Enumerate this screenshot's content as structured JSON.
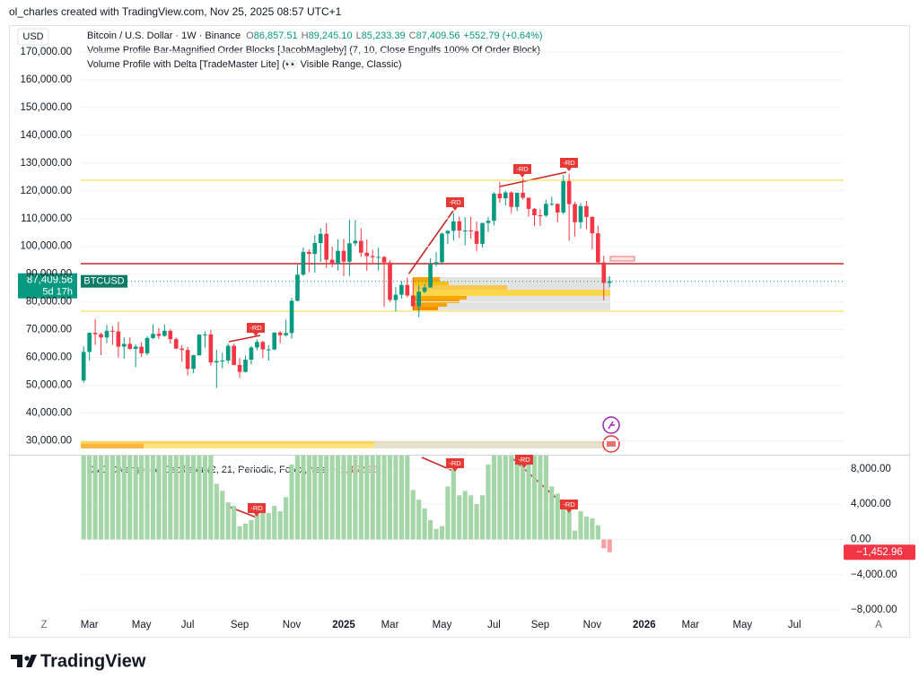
{
  "header": {
    "attribution": "ol_charles created with TradingView.com, Nov 25, 2025 08:57 UTC+1"
  },
  "chart_data": [
    {
      "type": "candlestick",
      "currency": "USD",
      "legend": {
        "symbol": "Bitcoin / U.S. Dollar · 1W · Binance",
        "o_key": "O",
        "o": "86,857.51",
        "h_key": "H",
        "h": "89,245.10",
        "l_key": "L",
        "l": "85,233.39",
        "c_key": "C",
        "c": "87,409.56",
        "change": "+552.79 (+0.64%)"
      },
      "indicators": [
        "Volume Profile Bar-Magnified Order Blocks [JacobMagleby] (7, 10, Close Engulfs 100% Of Order Block)",
        "Volume Profile with Delta [TradeMaster Lite] (👀 Visible Range, Classic)"
      ],
      "symbol": "BTCUSD",
      "last_price_label": "87,409.56",
      "countdown": "5d 17h",
      "color_up": "#089981",
      "color_down": "#f23645",
      "open": [
        51700,
        62000,
        68900,
        68400,
        67200,
        69600,
        69400,
        63900,
        64900,
        63100,
        63900,
        61500,
        67000,
        68500,
        67800,
        69600,
        66600,
        63200,
        62700,
        55900,
        60800,
        68200,
        68300,
        58200,
        58700,
        58900,
        64200,
        57300,
        54800,
        59200,
        63600,
        65600,
        62900,
        62900,
        69000,
        68000,
        68800,
        80400,
        89800,
        98000,
        97300,
        101200,
        104500,
        95200,
        93700,
        98400,
        94500,
        101100,
        102000,
        97700,
        96500,
        96100,
        96200,
        94200,
        80700,
        82600,
        86100,
        82300,
        78400,
        83700,
        85200,
        93700,
        94300,
        104600,
        105600,
        109000,
        105700,
        105700,
        105500,
        100900,
        108400,
        109200,
        119000,
        117300,
        119400,
        114200,
        119300,
        117500,
        113500,
        111200,
        111100,
        115300,
        115300,
        112200,
        123500,
        115200,
        108700,
        114500,
        110600,
        104700,
        94200,
        86857.51
      ],
      "high": [
        64000,
        69000,
        73800,
        68900,
        71700,
        71300,
        72800,
        67200,
        67200,
        64700,
        65500,
        67700,
        71900,
        70600,
        71900,
        70200,
        67200,
        64500,
        63800,
        61000,
        68400,
        69400,
        70000,
        62700,
        61700,
        65000,
        64900,
        59800,
        60600,
        64100,
        66500,
        66000,
        64500,
        69000,
        69500,
        73600,
        81500,
        93400,
        99600,
        98900,
        104000,
        106500,
        108300,
        99900,
        102500,
        102700,
        109600,
        109500,
        106500,
        102500,
        98800,
        99500,
        96500,
        95000,
        85300,
        87500,
        88800,
        88500,
        86100,
        86400,
        95700,
        97900,
        104900,
        105800,
        112000,
        110700,
        110500,
        110600,
        108900,
        108500,
        110500,
        119500,
        123200,
        120000,
        119800,
        119300,
        124500,
        117600,
        113800,
        113400,
        116800,
        117900,
        115400,
        125700,
        126200,
        116000,
        115600,
        116400,
        110800,
        107500,
        96600,
        89245.1
      ],
      "low": [
        50900,
        59000,
        64500,
        60800,
        65100,
        64500,
        60000,
        59600,
        62800,
        56500,
        60200,
        60800,
        66600,
        66600,
        67500,
        65000,
        63000,
        58500,
        53500,
        54300,
        60600,
        63500,
        57100,
        49000,
        56100,
        57800,
        57200,
        52600,
        54600,
        57500,
        62600,
        59800,
        58900,
        62600,
        65100,
        67500,
        66800,
        80200,
        89400,
        90700,
        90500,
        94300,
        92200,
        92500,
        91300,
        89300,
        89300,
        100200,
        96200,
        91200,
        94100,
        91300,
        78200,
        80000,
        76600,
        81200,
        81600,
        77100,
        74500,
        83100,
        85100,
        92800,
        93400,
        100800,
        102100,
        103000,
        100400,
        102700,
        98200,
        99600,
        105100,
        107500,
        115700,
        114700,
        112000,
        112700,
        116800,
        110700,
        107300,
        107300,
        110600,
        114700,
        108600,
        111500,
        102000,
        103500,
        106400,
        106200,
        99000,
        94000,
        80600,
        85233.39
      ],
      "close": [
        62000,
        68900,
        68400,
        67200,
        69600,
        69400,
        63900,
        64900,
        63100,
        63900,
        61500,
        67000,
        68500,
        67800,
        69600,
        66600,
        63200,
        62700,
        55900,
        60800,
        68200,
        68300,
        58200,
        58700,
        58900,
        64200,
        57300,
        54800,
        59200,
        63600,
        65600,
        62900,
        62900,
        69000,
        68000,
        68800,
        80400,
        89800,
        98000,
        97300,
        101200,
        104500,
        95200,
        93700,
        98400,
        94500,
        101100,
        102000,
        97700,
        96500,
        96100,
        96200,
        94200,
        80700,
        82600,
        86100,
        82300,
        78400,
        83700,
        85200,
        93700,
        94300,
        104600,
        105600,
        109000,
        105700,
        105700,
        105500,
        100900,
        108400,
        109200,
        119000,
        117300,
        119400,
        114200,
        119300,
        117500,
        113500,
        111200,
        111100,
        115300,
        115300,
        112200,
        123500,
        115200,
        108700,
        114500,
        110600,
        104700,
        94200,
        86857.51,
        87409.56
      ],
      "levels": [
        {
          "value": 93770,
          "color": "#c62828"
        },
        {
          "value": 123800,
          "color": "#f5e05a"
        },
        {
          "value": 76650,
          "color": "#f5e05a"
        }
      ],
      "annotations": [
        "-RD",
        "-RD",
        "-RD",
        "-RD"
      ],
      "ylim": [
        25000,
        179000
      ],
      "yticks": [
        {
          "value": 30000,
          "label": "30,000.00"
        },
        {
          "value": 40000,
          "label": "40,000.00"
        },
        {
          "value": 50000,
          "label": "50,000.00"
        },
        {
          "value": 60000,
          "label": "60,000.00"
        },
        {
          "value": 70000,
          "label": "70,000.00"
        },
        {
          "value": 80000,
          "label": "80,000.00"
        },
        {
          "value": 90000,
          "label": "90,000.00"
        },
        {
          "value": 100000,
          "label": "100,000.00"
        },
        {
          "value": 110000,
          "label": "110,000.00"
        },
        {
          "value": 120000,
          "label": "120,000.00"
        },
        {
          "value": 130000,
          "label": "130,000.00"
        },
        {
          "value": 140000,
          "label": "140,000.00"
        },
        {
          "value": 150000,
          "label": "150,000.00"
        },
        {
          "value": 160000,
          "label": "160,000.00"
        },
        {
          "value": 170000,
          "label": "170,000.00"
        }
      ],
      "xlim": [
        -0.5,
        131.5
      ],
      "xticks": [
        {
          "value": 1,
          "label": "Mar"
        },
        {
          "value": 10,
          "label": "May"
        },
        {
          "value": 18,
          "label": "Jul"
        },
        {
          "value": 27,
          "label": "Sep"
        },
        {
          "value": 36,
          "label": "Nov"
        },
        {
          "value": 45,
          "label": "2025"
        },
        {
          "value": 53,
          "label": "Mar"
        },
        {
          "value": 62,
          "label": "May"
        },
        {
          "value": 71,
          "label": "Jul"
        },
        {
          "value": 79,
          "label": "Sep"
        },
        {
          "value": 88,
          "label": "Nov"
        },
        {
          "value": 97,
          "label": "2026"
        },
        {
          "value": 105,
          "label": "Mar"
        },
        {
          "value": 114,
          "label": "May"
        },
        {
          "value": 123,
          "label": "Jul"
        }
      ],
      "grid": true
    },
    {
      "type": "bar",
      "title": "CVD Divergence Oscillator (2, 21, Periodic, Forex, Yes)",
      "last_value_label": "−1,452.96",
      "color_up": "#a5d6a7",
      "color_down": "#f7a1a4",
      "values": [
        10000,
        10000,
        10000,
        10000,
        10000,
        10000,
        10000,
        10000,
        10000,
        10000,
        10000,
        10000,
        10000,
        10000,
        10000,
        10000,
        10000,
        10000,
        10000,
        10000,
        10000,
        10000,
        10000,
        6300,
        5500,
        4200,
        3800,
        1500,
        1800,
        2200,
        2800,
        3500,
        3000,
        3800,
        3200,
        4800,
        8500,
        10000,
        10000,
        10000,
        10000,
        10000,
        10000,
        10000,
        10000,
        10000,
        10000,
        10000,
        10000,
        10000,
        10000,
        10000,
        10000,
        10000,
        10000,
        10000,
        10000,
        5600,
        4500,
        3500,
        2200,
        1200,
        1500,
        6000,
        8000,
        5000,
        5500,
        5000,
        4000,
        5000,
        8500,
        10000,
        10000,
        10000,
        10000,
        10000,
        10000,
        10000,
        10000,
        10000,
        10000,
        6000,
        5200,
        4500,
        3800,
        1000,
        3200,
        2600,
        2400,
        1600,
        -1000,
        -1452.96
      ],
      "annotations": [
        "-RD",
        "-RD",
        "-RD",
        "-RD"
      ],
      "ylim": [
        -9000,
        9500
      ],
      "yticks": [
        {
          "value": 8000,
          "label": "8,000.00"
        },
        {
          "value": 4000,
          "label": "4,000.00"
        },
        {
          "value": 0,
          "label": "0.00"
        },
        {
          "value": -4000,
          "label": "−4,000.00"
        },
        {
          "value": -8000,
          "label": "−8,000.00"
        }
      ],
      "grid": true
    }
  ],
  "footer": {
    "left_button": "Z",
    "right_button": "A",
    "brand": "TradingView"
  }
}
